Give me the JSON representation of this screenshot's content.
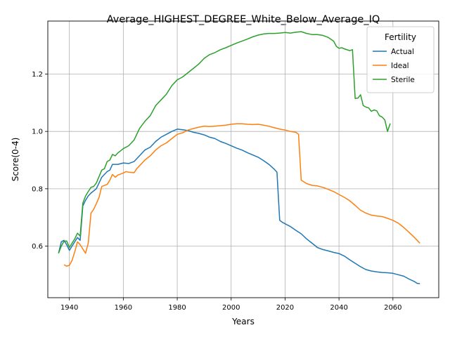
{
  "chart_data": {
    "type": "line",
    "title": "Average_HIGHEST_DEGREE_White_Below_Average_IQ",
    "xlabel": "Years",
    "ylabel": "Score(0-4)",
    "xlim": [
      1932,
      2077
    ],
    "ylim": [
      0.42,
      1.385
    ],
    "xticks": [
      1940,
      1960,
      1980,
      2000,
      2020,
      2040,
      2060
    ],
    "yticks": [
      0.6,
      0.8,
      1.0,
      1.2
    ],
    "ytick_labels": [
      "0.6",
      "0.8",
      "1.0",
      "1.2"
    ],
    "grid": true,
    "legend": {
      "title": "Fertility",
      "placement": "top-right"
    },
    "series": [
      {
        "name": "Actual",
        "color": "#1f77b4",
        "points": [
          [
            1936,
            0.575
          ],
          [
            1937,
            0.615
          ],
          [
            1938,
            0.62
          ],
          [
            1939,
            0.605
          ],
          [
            1940,
            0.585
          ],
          [
            1941,
            0.6
          ],
          [
            1942,
            0.615
          ],
          [
            1943,
            0.63
          ],
          [
            1944,
            0.62
          ],
          [
            1945,
            0.74
          ],
          [
            1946,
            0.76
          ],
          [
            1947,
            0.775
          ],
          [
            1948,
            0.785
          ],
          [
            1950,
            0.8
          ],
          [
            1952,
            0.84
          ],
          [
            1954,
            0.86
          ],
          [
            1955,
            0.865
          ],
          [
            1956,
            0.885
          ],
          [
            1958,
            0.885
          ],
          [
            1960,
            0.89
          ],
          [
            1962,
            0.888
          ],
          [
            1964,
            0.895
          ],
          [
            1966,
            0.915
          ],
          [
            1968,
            0.935
          ],
          [
            1970,
            0.945
          ],
          [
            1972,
            0.965
          ],
          [
            1974,
            0.98
          ],
          [
            1976,
            0.99
          ],
          [
            1978,
            1.0
          ],
          [
            1980,
            1.008
          ],
          [
            1982,
            1.006
          ],
          [
            1984,
            1.003
          ],
          [
            1986,
            0.997
          ],
          [
            1988,
            0.993
          ],
          [
            1990,
            0.988
          ],
          [
            1992,
            0.98
          ],
          [
            1994,
            0.975
          ],
          [
            1996,
            0.965
          ],
          [
            1998,
            0.958
          ],
          [
            2000,
            0.95
          ],
          [
            2002,
            0.942
          ],
          [
            2004,
            0.935
          ],
          [
            2006,
            0.926
          ],
          [
            2008,
            0.918
          ],
          [
            2010,
            0.91
          ],
          [
            2012,
            0.898
          ],
          [
            2014,
            0.885
          ],
          [
            2016,
            0.868
          ],
          [
            2017,
            0.858
          ],
          [
            2018,
            0.69
          ],
          [
            2019,
            0.683
          ],
          [
            2020,
            0.678
          ],
          [
            2022,
            0.668
          ],
          [
            2024,
            0.655
          ],
          [
            2026,
            0.643
          ],
          [
            2028,
            0.625
          ],
          [
            2030,
            0.61
          ],
          [
            2032,
            0.595
          ],
          [
            2034,
            0.588
          ],
          [
            2036,
            0.583
          ],
          [
            2038,
            0.578
          ],
          [
            2040,
            0.574
          ],
          [
            2042,
            0.565
          ],
          [
            2044,
            0.552
          ],
          [
            2046,
            0.54
          ],
          [
            2048,
            0.528
          ],
          [
            2050,
            0.518
          ],
          [
            2052,
            0.513
          ],
          [
            2054,
            0.51
          ],
          [
            2056,
            0.508
          ],
          [
            2058,
            0.507
          ],
          [
            2060,
            0.505
          ],
          [
            2062,
            0.5
          ],
          [
            2064,
            0.495
          ],
          [
            2066,
            0.485
          ],
          [
            2068,
            0.476
          ],
          [
            2069,
            0.47
          ],
          [
            2070,
            0.469
          ]
        ]
      },
      {
        "name": "Ideal",
        "color": "#ff7f0e",
        "points": [
          [
            1938,
            0.535
          ],
          [
            1939,
            0.53
          ],
          [
            1940,
            0.533
          ],
          [
            1941,
            0.55
          ],
          [
            1942,
            0.58
          ],
          [
            1943,
            0.615
          ],
          [
            1944,
            0.605
          ],
          [
            1945,
            0.59
          ],
          [
            1946,
            0.575
          ],
          [
            1947,
            0.61
          ],
          [
            1948,
            0.715
          ],
          [
            1949,
            0.728
          ],
          [
            1950,
            0.748
          ],
          [
            1951,
            0.77
          ],
          [
            1952,
            0.808
          ],
          [
            1954,
            0.815
          ],
          [
            1955,
            0.83
          ],
          [
            1956,
            0.85
          ],
          [
            1957,
            0.84
          ],
          [
            1958,
            0.848
          ],
          [
            1960,
            0.855
          ],
          [
            1961,
            0.86
          ],
          [
            1962,
            0.858
          ],
          [
            1964,
            0.856
          ],
          [
            1965,
            0.87
          ],
          [
            1966,
            0.88
          ],
          [
            1968,
            0.9
          ],
          [
            1970,
            0.915
          ],
          [
            1972,
            0.935
          ],
          [
            1974,
            0.95
          ],
          [
            1976,
            0.96
          ],
          [
            1978,
            0.975
          ],
          [
            1980,
            0.99
          ],
          [
            1982,
            0.995
          ],
          [
            1984,
            1.005
          ],
          [
            1986,
            1.01
          ],
          [
            1988,
            1.015
          ],
          [
            1990,
            1.018
          ],
          [
            1992,
            1.017
          ],
          [
            1994,
            1.018
          ],
          [
            1996,
            1.02
          ],
          [
            1998,
            1.022
          ],
          [
            2000,
            1.025
          ],
          [
            2002,
            1.027
          ],
          [
            2004,
            1.027
          ],
          [
            2006,
            1.025
          ],
          [
            2008,
            1.024
          ],
          [
            2010,
            1.025
          ],
          [
            2012,
            1.022
          ],
          [
            2014,
            1.018
          ],
          [
            2016,
            1.013
          ],
          [
            2018,
            1.008
          ],
          [
            2020,
            1.005
          ],
          [
            2022,
            1.0
          ],
          [
            2024,
            0.997
          ],
          [
            2025,
            0.99
          ],
          [
            2026,
            0.83
          ],
          [
            2028,
            0.818
          ],
          [
            2030,
            0.812
          ],
          [
            2032,
            0.81
          ],
          [
            2034,
            0.805
          ],
          [
            2036,
            0.798
          ],
          [
            2038,
            0.79
          ],
          [
            2040,
            0.78
          ],
          [
            2042,
            0.77
          ],
          [
            2044,
            0.758
          ],
          [
            2046,
            0.742
          ],
          [
            2048,
            0.725
          ],
          [
            2050,
            0.715
          ],
          [
            2052,
            0.708
          ],
          [
            2054,
            0.705
          ],
          [
            2056,
            0.703
          ],
          [
            2058,
            0.697
          ],
          [
            2060,
            0.69
          ],
          [
            2062,
            0.68
          ],
          [
            2064,
            0.665
          ],
          [
            2066,
            0.648
          ],
          [
            2068,
            0.63
          ],
          [
            2070,
            0.61
          ]
        ]
      },
      {
        "name": "Sterile",
        "color": "#2ca02c",
        "points": [
          [
            1936,
            0.575
          ],
          [
            1937,
            0.6
          ],
          [
            1938,
            0.617
          ],
          [
            1939,
            0.618
          ],
          [
            1940,
            0.595
          ],
          [
            1941,
            0.61
          ],
          [
            1942,
            0.625
          ],
          [
            1943,
            0.645
          ],
          [
            1944,
            0.635
          ],
          [
            1945,
            0.75
          ],
          [
            1946,
            0.775
          ],
          [
            1947,
            0.79
          ],
          [
            1948,
            0.805
          ],
          [
            1949,
            0.808
          ],
          [
            1950,
            0.82
          ],
          [
            1952,
            0.865
          ],
          [
            1953,
            0.87
          ],
          [
            1954,
            0.895
          ],
          [
            1955,
            0.9
          ],
          [
            1956,
            0.92
          ],
          [
            1957,
            0.915
          ],
          [
            1958,
            0.925
          ],
          [
            1960,
            0.94
          ],
          [
            1962,
            0.95
          ],
          [
            1964,
            0.97
          ],
          [
            1966,
            1.01
          ],
          [
            1968,
            1.035
          ],
          [
            1970,
            1.055
          ],
          [
            1972,
            1.09
          ],
          [
            1974,
            1.11
          ],
          [
            1976,
            1.13
          ],
          [
            1978,
            1.16
          ],
          [
            1980,
            1.18
          ],
          [
            1982,
            1.19
          ],
          [
            1984,
            1.205
          ],
          [
            1986,
            1.22
          ],
          [
            1988,
            1.235
          ],
          [
            1990,
            1.255
          ],
          [
            1992,
            1.268
          ],
          [
            1994,
            1.275
          ],
          [
            1996,
            1.285
          ],
          [
            1998,
            1.292
          ],
          [
            2000,
            1.3
          ],
          [
            2002,
            1.308
          ],
          [
            2004,
            1.315
          ],
          [
            2006,
            1.322
          ],
          [
            2008,
            1.33
          ],
          [
            2010,
            1.336
          ],
          [
            2012,
            1.34
          ],
          [
            2014,
            1.342
          ],
          [
            2016,
            1.342
          ],
          [
            2018,
            1.343
          ],
          [
            2020,
            1.345
          ],
          [
            2022,
            1.343
          ],
          [
            2024,
            1.346
          ],
          [
            2026,
            1.348
          ],
          [
            2028,
            1.342
          ],
          [
            2030,
            1.338
          ],
          [
            2032,
            1.338
          ],
          [
            2034,
            1.335
          ],
          [
            2036,
            1.328
          ],
          [
            2038,
            1.315
          ],
          [
            2039,
            1.297
          ],
          [
            2040,
            1.29
          ],
          [
            2041,
            1.292
          ],
          [
            2042,
            1.288
          ],
          [
            2044,
            1.282
          ],
          [
            2045,
            1.285
          ],
          [
            2046,
            1.115
          ],
          [
            2047,
            1.116
          ],
          [
            2048,
            1.128
          ],
          [
            2049,
            1.09
          ],
          [
            2050,
            1.085
          ],
          [
            2051,
            1.082
          ],
          [
            2052,
            1.07
          ],
          [
            2053,
            1.075
          ],
          [
            2054,
            1.072
          ],
          [
            2055,
            1.055
          ],
          [
            2056,
            1.05
          ],
          [
            2057,
            1.04
          ],
          [
            2058,
            1.0
          ],
          [
            2059,
            1.028
          ]
        ]
      }
    ]
  }
}
